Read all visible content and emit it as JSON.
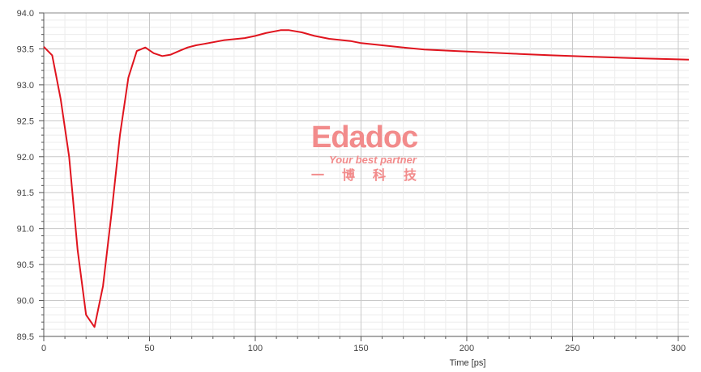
{
  "chart_data": {
    "type": "line",
    "title": "",
    "xlabel": "Time [ps]",
    "ylabel": "",
    "xlim": [
      0,
      305
    ],
    "ylim": [
      89.5,
      94.0
    ],
    "xticks": [
      0,
      50,
      100,
      150,
      200,
      250,
      300
    ],
    "yticks": [
      89.5,
      90.0,
      90.5,
      91.0,
      91.5,
      92.0,
      92.5,
      93.0,
      93.5,
      94.0
    ],
    "grid": true,
    "line_color": "#e0141e",
    "series": [
      {
        "x": [
          0,
          4,
          8,
          12,
          16,
          20,
          24,
          28,
          32,
          36,
          40,
          44,
          48,
          52,
          56,
          60,
          64,
          68,
          72,
          76,
          85,
          95,
          100,
          105,
          112,
          116,
          122,
          128,
          135,
          145,
          150,
          160,
          170,
          180,
          195,
          210,
          225,
          240,
          260,
          280,
          305
        ],
        "y": [
          93.53,
          93.41,
          92.8,
          92.0,
          90.7,
          89.8,
          89.63,
          90.2,
          91.2,
          92.3,
          93.1,
          93.47,
          93.52,
          93.44,
          93.4,
          93.42,
          93.47,
          93.52,
          93.55,
          93.57,
          93.62,
          93.65,
          93.68,
          93.72,
          93.76,
          93.76,
          93.73,
          93.68,
          93.64,
          93.61,
          93.58,
          93.55,
          93.52,
          93.49,
          93.47,
          93.45,
          93.43,
          93.41,
          93.39,
          93.37,
          93.35
        ]
      }
    ]
  },
  "watermark": {
    "brand": "Edadoc",
    "tagline": "Your best partner",
    "chinese": "一博科技"
  }
}
